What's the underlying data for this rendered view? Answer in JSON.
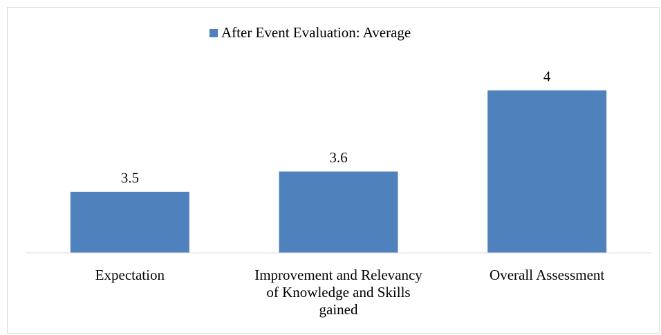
{
  "chart_data": {
    "type": "bar",
    "categories": [
      "Expectation",
      "Improvement and Relevancy of Knowledge and Skills gained",
      "Overall Assessment"
    ],
    "series": [
      {
        "name": "After Event Evaluation: Average",
        "color": "#4f81bd",
        "values": [
          3.5,
          3.6,
          4
        ]
      }
    ],
    "ylim": [
      3.2,
      4.2
    ],
    "legend": "top",
    "grid": false
  }
}
